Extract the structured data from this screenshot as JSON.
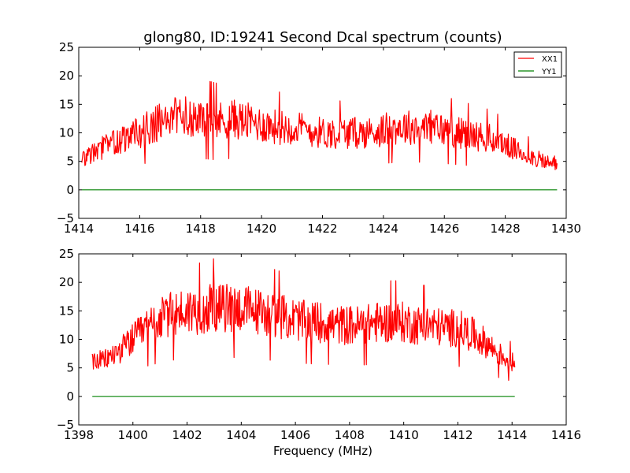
{
  "chart_data": [
    {
      "type": "line",
      "title": "glong80, ID:19241 Second Dcal spectrum (counts)",
      "xlabel": "",
      "ylabel": "",
      "xlim": [
        1414,
        1430
      ],
      "ylim": [
        -5,
        25
      ],
      "xticks": [
        1414,
        1416,
        1418,
        1420,
        1422,
        1424,
        1426,
        1428,
        1430
      ],
      "yticks": [
        -5,
        0,
        5,
        10,
        15,
        20,
        25
      ],
      "grid": false,
      "legend": {
        "placement": "top-right",
        "entries": [
          "XX1",
          "YY1"
        ]
      },
      "series": [
        {
          "name": "XX1",
          "color": "#ff0000",
          "x": [
            1414.1,
            1414.5,
            1415,
            1415.5,
            1416,
            1416.5,
            1417,
            1417.5,
            1418,
            1418.5,
            1419,
            1419.5,
            1420,
            1420.5,
            1421,
            1421.5,
            1422,
            1422.5,
            1423,
            1423.5,
            1424,
            1424.5,
            1425,
            1425.5,
            1426,
            1426.5,
            1427,
            1427.5,
            1428,
            1428.5,
            1429,
            1429.5,
            1429.7
          ],
          "y": [
            5.5,
            6.5,
            8,
            9,
            10,
            11.5,
            12.5,
            13,
            12.5,
            12,
            12.5,
            12,
            11.5,
            11,
            11,
            10.5,
            10,
            10,
            10,
            10,
            10.5,
            11,
            11,
            11,
            10.5,
            10,
            9.5,
            9,
            8,
            6.5,
            5.5,
            4.5,
            5
          ]
        },
        {
          "name": "YY1",
          "color": "#008000",
          "x": [
            1414.1,
            1429.7
          ],
          "y": [
            0,
            0
          ]
        }
      ]
    },
    {
      "type": "line",
      "title": "",
      "xlabel": "Frequency (MHz)",
      "ylabel": "",
      "xlim": [
        1398,
        1416
      ],
      "ylim": [
        -5,
        25
      ],
      "xticks": [
        1398,
        1400,
        1402,
        1404,
        1406,
        1408,
        1410,
        1412,
        1414,
        1416
      ],
      "yticks": [
        -5,
        0,
        5,
        10,
        15,
        20,
        25
      ],
      "grid": false,
      "series": [
        {
          "name": "XX1",
          "color": "#ff0000",
          "x": [
            1398.5,
            1399,
            1399.5,
            1400,
            1400.5,
            1401,
            1401.5,
            1402,
            1402.5,
            1403,
            1403.5,
            1404,
            1404.5,
            1405,
            1405.5,
            1406,
            1406.5,
            1407,
            1407.5,
            1408,
            1408.5,
            1409,
            1409.5,
            1410,
            1410.5,
            1411,
            1411.5,
            1412,
            1412.5,
            1413,
            1413.5,
            1414,
            1414.1
          ],
          "y": [
            6,
            6.5,
            8,
            10,
            12,
            13.5,
            14.5,
            15,
            15,
            15.5,
            15.5,
            15.5,
            15,
            14.5,
            14,
            13.5,
            13,
            13,
            12.5,
            12.5,
            12.5,
            13,
            13,
            13,
            12.5,
            12.5,
            12,
            12,
            11,
            9.5,
            7.5,
            6,
            6
          ]
        },
        {
          "name": "YY1",
          "color": "#008000",
          "x": [
            1398.5,
            1414.1
          ],
          "y": [
            0,
            0
          ]
        }
      ]
    }
  ]
}
